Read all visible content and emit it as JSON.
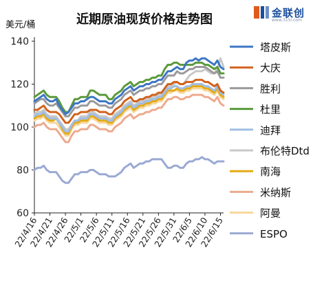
{
  "chart_data": {
    "type": "line",
    "title": "近期原油现货价格走势图",
    "ylabel": "美元/桶",
    "ylim": [
      60,
      140
    ],
    "yticks": [
      60,
      80,
      100,
      120,
      140
    ],
    "grid": false,
    "legend_position": "right",
    "x": [
      "22/4/16",
      "22/4/17",
      "22/4/18",
      "22/4/19",
      "22/4/20",
      "22/4/21",
      "22/4/22",
      "22/4/23",
      "22/4/24",
      "22/4/25",
      "22/4/26",
      "22/4/27",
      "22/4/28",
      "22/4/29",
      "22/4/30",
      "22/5/1",
      "22/5/2",
      "22/5/3",
      "22/5/4",
      "22/5/5",
      "22/5/6",
      "22/5/7",
      "22/5/8",
      "22/5/9",
      "22/5/10",
      "22/5/11",
      "22/5/12",
      "22/5/13",
      "22/5/14",
      "22/5/15",
      "22/5/16",
      "22/5/17",
      "22/5/18",
      "22/5/19",
      "22/5/20",
      "22/5/21",
      "22/5/22",
      "22/5/23",
      "22/5/24",
      "22/5/25",
      "22/5/26",
      "22/5/27",
      "22/5/28",
      "22/5/29",
      "22/5/30",
      "22/5/31",
      "22/6/1",
      "22/6/2",
      "22/6/3",
      "22/6/4",
      "22/6/5",
      "22/6/6",
      "22/6/7",
      "22/6/8",
      "22/6/9",
      "22/6/10",
      "22/6/11",
      "22/6/12",
      "22/6/13",
      "22/6/14",
      "22/6/15",
      "22/6/16"
    ],
    "x_tick_labels": [
      "22/4/16",
      "22/4/21",
      "22/4/26",
      "22/5/1",
      "22/5/6",
      "22/5/11",
      "22/5/16",
      "22/5/21",
      "22/5/26",
      "22/5/31",
      "22/6/5",
      "22/6/10",
      "22/6/15"
    ],
    "series": [
      {
        "name": "塔皮斯",
        "color": "#3d76c4",
        "values": [
          112,
          113,
          114,
          115,
          113,
          112,
          112,
          113,
          110,
          108,
          106,
          107,
          109,
          111,
          111,
          112,
          112,
          113,
          114,
          114,
          113,
          112,
          112,
          112,
          111,
          111,
          113,
          114,
          115,
          117,
          118,
          119,
          117,
          118,
          119,
          119,
          120,
          120,
          121,
          121,
          122,
          122,
          124,
          126,
          126,
          127,
          128,
          127,
          127,
          130,
          131,
          131,
          132,
          131,
          132,
          132,
          131,
          130,
          129,
          131,
          128,
          127
        ]
      },
      {
        "name": "大庆",
        "color": "#d1621d",
        "values": [
          108,
          108,
          109,
          110,
          108,
          107,
          107,
          107,
          106,
          104,
          102,
          102,
          104,
          106,
          106,
          107,
          107,
          107,
          108,
          108,
          108,
          107,
          107,
          107,
          106,
          106,
          108,
          109,
          110,
          112,
          113,
          114,
          112,
          112,
          113,
          113,
          114,
          114,
          115,
          115,
          116,
          116,
          118,
          120,
          120,
          121,
          121,
          120,
          120,
          121,
          121,
          121,
          122,
          122,
          122,
          121,
          121,
          120,
          119,
          120,
          117,
          116
        ]
      },
      {
        "name": "胜利",
        "color": "#9a9a9a",
        "values": [
          111,
          112,
          113,
          113,
          111,
          110,
          110,
          111,
          109,
          107,
          105,
          105,
          107,
          109,
          109,
          110,
          110,
          110,
          112,
          112,
          111,
          110,
          110,
          110,
          109,
          109,
          111,
          112,
          113,
          115,
          116,
          117,
          115,
          116,
          117,
          117,
          118,
          118,
          119,
          119,
          120,
          120,
          122,
          124,
          124,
          124,
          126,
          125,
          125,
          126,
          127,
          127,
          128,
          128,
          128,
          128,
          127,
          126,
          125,
          126,
          123,
          123
        ]
      },
      {
        "name": "杜里",
        "color": "#5a9a3a",
        "values": [
          114,
          115,
          116,
          117,
          115,
          114,
          114,
          114,
          112,
          109,
          107,
          107,
          110,
          113,
          113,
          114,
          114,
          114,
          117,
          117,
          116,
          115,
          115,
          115,
          113,
          113,
          115,
          116,
          117,
          119,
          120,
          121,
          119,
          120,
          121,
          121,
          122,
          122,
          123,
          123,
          124,
          124,
          127,
          129,
          129,
          130,
          130,
          129,
          129,
          129,
          129,
          129,
          130,
          130,
          130,
          129,
          129,
          128,
          127,
          128,
          125,
          125
        ]
      },
      {
        "name": "迪拜",
        "color": "#9fbde4",
        "values": [
          105,
          106,
          106,
          107,
          105,
          104,
          104,
          104,
          102,
          100,
          98,
          98,
          101,
          103,
          103,
          104,
          104,
          104,
          106,
          106,
          105,
          104,
          104,
          104,
          103,
          103,
          105,
          106,
          107,
          109,
          110,
          111,
          109,
          110,
          111,
          111,
          112,
          112,
          113,
          113,
          114,
          114,
          116,
          118,
          118,
          119,
          119,
          118,
          118,
          119,
          119,
          120,
          120,
          120,
          120,
          119,
          119,
          118,
          117,
          119,
          116,
          115
        ]
      },
      {
        "name": "布伦特Dtd",
        "color": "#c8c8c8",
        "values": [
          106,
          107,
          107,
          108,
          106,
          105,
          105,
          105,
          103,
          101,
          99,
          99,
          101,
          103,
          103,
          105,
          105,
          105,
          107,
          107,
          106,
          105,
          105,
          105,
          104,
          104,
          106,
          107,
          108,
          110,
          111,
          112,
          110,
          111,
          112,
          112,
          113,
          113,
          114,
          114,
          115,
          115,
          117,
          119,
          119,
          120,
          121,
          120,
          120,
          122,
          124,
          125,
          126,
          126,
          126,
          127,
          126,
          125,
          125,
          127,
          132,
          128
        ]
      },
      {
        "name": "南海",
        "color": "#e3aa15",
        "values": [
          104,
          105,
          105,
          106,
          104,
          103,
          103,
          104,
          102,
          99,
          97,
          97,
          100,
          102,
          102,
          103,
          103,
          103,
          105,
          105,
          104,
          103,
          103,
          103,
          102,
          102,
          104,
          105,
          106,
          108,
          109,
          110,
          108,
          109,
          110,
          110,
          111,
          111,
          112,
          112,
          113,
          113,
          115,
          117,
          117,
          117,
          118,
          117,
          117,
          118,
          118,
          119,
          119,
          119,
          119,
          118,
          118,
          117,
          116,
          118,
          115,
          114
        ]
      },
      {
        "name": "米纳斯",
        "color": "#ecaa8e",
        "values": [
          100,
          101,
          101,
          102,
          100,
          99,
          99,
          99,
          97,
          95,
          93,
          93,
          96,
          98,
          98,
          99,
          99,
          99,
          101,
          101,
          100,
          99,
          99,
          99,
          98,
          98,
          100,
          101,
          102,
          104,
          105,
          106,
          104,
          105,
          106,
          106,
          107,
          107,
          108,
          108,
          109,
          109,
          111,
          113,
          113,
          114,
          114,
          113,
          113,
          114,
          114,
          115,
          115,
          115,
          115,
          114,
          114,
          113,
          112,
          114,
          111,
          110
        ]
      },
      {
        "name": "阿曼",
        "color": "#f7d69a",
        "values": [
          103,
          104,
          104,
          105,
          103,
          102,
          102,
          102,
          100,
          98,
          96,
          96,
          99,
          101,
          101,
          102,
          102,
          102,
          104,
          104,
          103,
          102,
          102,
          102,
          101,
          101,
          103,
          104,
          105,
          107,
          108,
          109,
          107,
          108,
          109,
          109,
          110,
          110,
          111,
          111,
          112,
          112,
          114,
          116,
          116,
          117,
          117,
          116,
          116,
          117,
          117,
          118,
          118,
          118,
          118,
          117,
          117,
          116,
          115,
          117,
          114,
          113
        ]
      },
      {
        "name": "ESPO",
        "color": "#9aa9d4",
        "values": [
          80,
          81,
          81,
          82,
          80,
          79,
          79,
          79,
          77,
          75,
          74,
          74,
          76,
          78,
          78,
          79,
          79,
          79,
          80,
          80,
          79,
          78,
          78,
          78,
          77,
          77,
          77,
          78,
          79,
          81,
          82,
          83,
          81,
          82,
          83,
          83,
          84,
          84,
          85,
          85,
          85,
          85,
          83,
          81,
          81,
          82,
          82,
          81,
          81,
          83,
          84,
          84,
          85,
          85,
          86,
          85,
          85,
          84,
          83,
          84,
          84,
          84
        ]
      }
    ]
  },
  "logo": {
    "text": "金联创",
    "url": "www.315i.com"
  }
}
